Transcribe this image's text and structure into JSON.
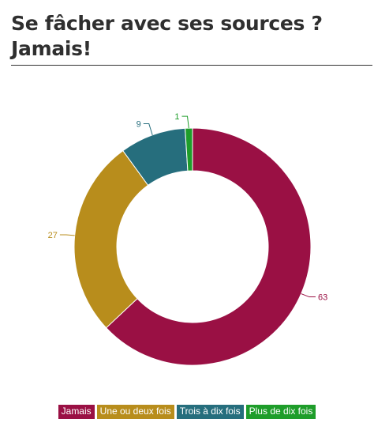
{
  "page": {
    "title": "Se fâcher avec ses sources ? Jamais!"
  },
  "chart_data": {
    "type": "pie",
    "style": "donut",
    "title": "Se fâcher avec ses sources ? Jamais!",
    "categories": [
      "Jamais",
      "Une ou deux fois",
      "Trois à dix fois",
      "Plus de dix fois"
    ],
    "values": [
      63,
      27,
      9,
      1
    ],
    "colors": [
      "#9a1044",
      "#b88d1c",
      "#266e7d",
      "#1e9d2a"
    ],
    "data_labels": [
      "63",
      "27",
      "9",
      "1"
    ],
    "legend": {
      "position": "bottom",
      "entries": [
        "Jamais",
        "Une ou deux fois",
        "Trois à dix fois",
        "Plus de dix fois"
      ]
    }
  }
}
